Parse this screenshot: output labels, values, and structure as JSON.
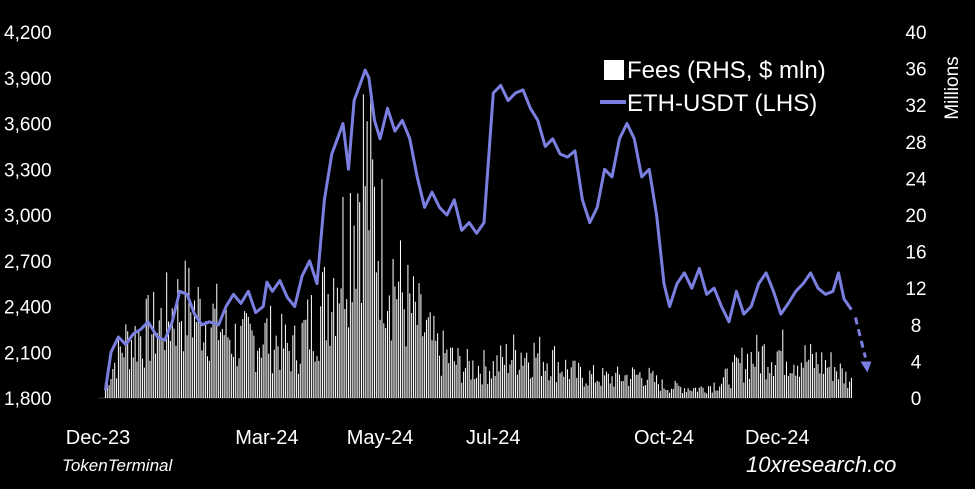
{
  "source_label": "TokenTerminal",
  "brand_label": "10xresearch.co",
  "chart_data": {
    "type": "bar+line",
    "colors": {
      "background": "#000000",
      "fees": "#ffffff",
      "eth": "#7b7fe0"
    },
    "axes": {
      "left": {
        "min": 1800,
        "max": 4200,
        "ticks": [
          "1,800",
          "2,100",
          "2,400",
          "2,700",
          "3,000",
          "3,300",
          "3,600",
          "3,900",
          "4,200"
        ]
      },
      "right": {
        "min": 0,
        "max": 40,
        "ticks": [
          "0",
          "4",
          "8",
          "12",
          "16",
          "20",
          "24",
          "28",
          "32",
          "36",
          "40"
        ],
        "label": "Millions"
      },
      "x": {
        "start": "2023-12-01",
        "end": "2025-01-20",
        "ticks": [
          {
            "label": "Dec-23",
            "date": "2023-12-01"
          },
          {
            "label": "Mar-24",
            "date": "2024-03-01"
          },
          {
            "label": "May-24",
            "date": "2024-05-01"
          },
          {
            "label": "Jul-24",
            "date": "2024-07-01"
          },
          {
            "label": "Oct-24",
            "date": "2024-10-01"
          },
          {
            "label": "Dec-24",
            "date": "2024-12-01"
          }
        ]
      }
    },
    "legend": {
      "position": "top-right",
      "entries": [
        "Fees (RHS, $ mln)",
        "ETH-USDT (LHS)"
      ]
    },
    "series": [
      {
        "name": "ETH-USDT (LHS)",
        "axis": "left",
        "kind": "line",
        "points": [
          [
            "2023-12-05",
            1850
          ],
          [
            "2023-12-08",
            2100
          ],
          [
            "2023-12-12",
            2200
          ],
          [
            "2023-12-16",
            2150
          ],
          [
            "2023-12-20",
            2220
          ],
          [
            "2023-12-24",
            2250
          ],
          [
            "2023-12-28",
            2300
          ],
          [
            "2024-01-02",
            2200
          ],
          [
            "2024-01-06",
            2180
          ],
          [
            "2024-01-10",
            2300
          ],
          [
            "2024-01-14",
            2500
          ],
          [
            "2024-01-18",
            2480
          ],
          [
            "2024-01-22",
            2350
          ],
          [
            "2024-01-26",
            2280
          ],
          [
            "2024-01-30",
            2300
          ],
          [
            "2024-02-04",
            2280
          ],
          [
            "2024-02-08",
            2400
          ],
          [
            "2024-02-12",
            2480
          ],
          [
            "2024-02-16",
            2420
          ],
          [
            "2024-02-20",
            2500
          ],
          [
            "2024-02-24",
            2360
          ],
          [
            "2024-02-28",
            2400
          ],
          [
            "2024-03-01",
            2560
          ],
          [
            "2024-03-04",
            2500
          ],
          [
            "2024-03-08",
            2570
          ],
          [
            "2024-03-12",
            2460
          ],
          [
            "2024-03-16",
            2400
          ],
          [
            "2024-03-20",
            2600
          ],
          [
            "2024-03-24",
            2700
          ],
          [
            "2024-03-28",
            2550
          ],
          [
            "2024-04-01",
            3100
          ],
          [
            "2024-04-05",
            3400
          ],
          [
            "2024-04-08",
            3500
          ],
          [
            "2024-04-11",
            3600
          ],
          [
            "2024-04-14",
            3300
          ],
          [
            "2024-04-17",
            3750
          ],
          [
            "2024-04-20",
            3850
          ],
          [
            "2024-04-23",
            3950
          ],
          [
            "2024-04-25",
            3900
          ],
          [
            "2024-04-28",
            3620
          ],
          [
            "2024-05-01",
            3500
          ],
          [
            "2024-05-05",
            3700
          ],
          [
            "2024-05-09",
            3550
          ],
          [
            "2024-05-13",
            3620
          ],
          [
            "2024-05-17",
            3500
          ],
          [
            "2024-05-21",
            3250
          ],
          [
            "2024-05-25",
            3050
          ],
          [
            "2024-05-29",
            3150
          ],
          [
            "2024-06-02",
            3050
          ],
          [
            "2024-06-06",
            3000
          ],
          [
            "2024-06-10",
            3100
          ],
          [
            "2024-06-14",
            2900
          ],
          [
            "2024-06-18",
            2950
          ],
          [
            "2024-06-22",
            2880
          ],
          [
            "2024-06-26",
            2950
          ],
          [
            "2024-07-01",
            3800
          ],
          [
            "2024-07-05",
            3850
          ],
          [
            "2024-07-09",
            3750
          ],
          [
            "2024-07-13",
            3800
          ],
          [
            "2024-07-17",
            3820
          ],
          [
            "2024-07-21",
            3700
          ],
          [
            "2024-07-25",
            3620
          ],
          [
            "2024-07-29",
            3450
          ],
          [
            "2024-08-02",
            3500
          ],
          [
            "2024-08-06",
            3400
          ],
          [
            "2024-08-10",
            3380
          ],
          [
            "2024-08-14",
            3420
          ],
          [
            "2024-08-18",
            3100
          ],
          [
            "2024-08-22",
            2950
          ],
          [
            "2024-08-26",
            3050
          ],
          [
            "2024-08-30",
            3300
          ],
          [
            "2024-09-03",
            3250
          ],
          [
            "2024-09-07",
            3500
          ],
          [
            "2024-09-11",
            3600
          ],
          [
            "2024-09-15",
            3500
          ],
          [
            "2024-09-19",
            3250
          ],
          [
            "2024-09-23",
            3300
          ],
          [
            "2024-09-27",
            3000
          ],
          [
            "2024-10-01",
            2550
          ],
          [
            "2024-10-04",
            2400
          ],
          [
            "2024-10-08",
            2550
          ],
          [
            "2024-10-12",
            2620
          ],
          [
            "2024-10-16",
            2520
          ],
          [
            "2024-10-20",
            2650
          ],
          [
            "2024-10-24",
            2480
          ],
          [
            "2024-10-28",
            2520
          ],
          [
            "2024-11-01",
            2400
          ],
          [
            "2024-11-05",
            2300
          ],
          [
            "2024-11-09",
            2500
          ],
          [
            "2024-11-13",
            2350
          ],
          [
            "2024-11-17",
            2400
          ],
          [
            "2024-11-21",
            2550
          ],
          [
            "2024-11-25",
            2620
          ],
          [
            "2024-11-29",
            2500
          ],
          [
            "2024-12-03",
            2350
          ],
          [
            "2024-12-07",
            2420
          ],
          [
            "2024-12-11",
            2500
          ],
          [
            "2024-12-15",
            2550
          ],
          [
            "2024-12-19",
            2620
          ],
          [
            "2024-12-23",
            2520
          ],
          [
            "2024-12-27",
            2480
          ],
          [
            "2024-12-31",
            2500
          ],
          [
            "2025-01-03",
            2620
          ],
          [
            "2025-01-06",
            2450
          ],
          [
            "2025-01-10",
            2380
          ]
        ]
      },
      {
        "name": "Fees (RHS, $ mln)",
        "axis": "right",
        "kind": "bar",
        "segments": [
          [
            "2023-12-05",
            2
          ],
          [
            "2023-12-15",
            7
          ],
          [
            "2024-01-01",
            9
          ],
          [
            "2024-01-15",
            12
          ],
          [
            "2024-02-01",
            10
          ],
          [
            "2024-02-15",
            7
          ],
          [
            "2024-03-01",
            8
          ],
          [
            "2024-03-15",
            6
          ],
          [
            "2024-04-01",
            12
          ],
          [
            "2024-04-12",
            20
          ],
          [
            "2024-04-22",
            30
          ],
          [
            "2024-05-01",
            20
          ],
          [
            "2024-05-15",
            12
          ],
          [
            "2024-06-01",
            6
          ],
          [
            "2024-06-15",
            4
          ],
          [
            "2024-07-01",
            4
          ],
          [
            "2024-07-15",
            6
          ],
          [
            "2024-08-01",
            5
          ],
          [
            "2024-08-15",
            3
          ],
          [
            "2024-09-01",
            2.5
          ],
          [
            "2024-09-20",
            3
          ],
          [
            "2024-10-01",
            1.5
          ],
          [
            "2024-10-20",
            1.2
          ],
          [
            "2024-11-01",
            2
          ],
          [
            "2024-11-15",
            5
          ],
          [
            "2024-12-01",
            6
          ],
          [
            "2024-12-15",
            5
          ],
          [
            "2025-01-01",
            4
          ],
          [
            "2025-01-10",
            2
          ]
        ]
      }
    ]
  }
}
